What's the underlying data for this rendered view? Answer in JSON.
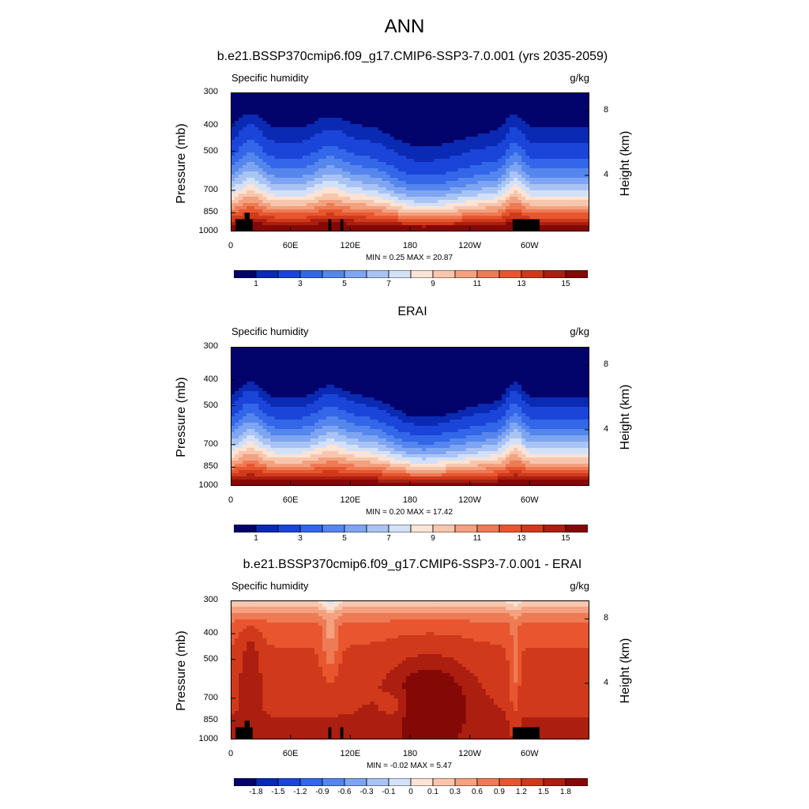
{
  "page_title": "ANN",
  "colors": {
    "sequential_scale": [
      "#02036b",
      "#0a2ab4",
      "#1a45d8",
      "#3366e8",
      "#5586ee",
      "#7ea5f1",
      "#a9c4f4",
      "#d3e1f8",
      "#fbe3d5",
      "#f8c6ad",
      "#f3a17f",
      "#ee7b55",
      "#e8562f",
      "#d03a1b",
      "#ac1e10",
      "#840806"
    ],
    "difference_scale": [
      "#02036b",
      "#0a2ab4",
      "#1a45d8",
      "#3366e8",
      "#5586ee",
      "#7ea5f1",
      "#a9c4f4",
      "#d3e1f8",
      "#fbe3d5",
      "#f8c6ad",
      "#f3a17f",
      "#ee7b55",
      "#e8562f",
      "#d03a1b",
      "#ac1e10",
      "#840806"
    ],
    "terrain_mask": "#000000"
  },
  "chart_data": [
    {
      "type": "heatmap",
      "title": "b.e21.BSSP370cmip6.f09_g17.CMIP6-SSP3-7.0.001 (yrs 2035-2059)",
      "variable": "Specific humidity",
      "units": "g/kg",
      "ylabel": "Pressure (mb)",
      "ylabel_right": "Height (km)",
      "x_ticks": [
        "0",
        "60E",
        "120E",
        "180",
        "120W",
        "60W"
      ],
      "x_tick_values": [
        0,
        60,
        120,
        180,
        240,
        300
      ],
      "xlim": [
        0,
        360
      ],
      "y_ticks": [
        "300",
        "400",
        "500",
        "700",
        "850",
        "1000"
      ],
      "y_tick_values": [
        300,
        400,
        500,
        700,
        850,
        1000
      ],
      "ylim": [
        1000,
        300
      ],
      "y_scale": "log",
      "height_ticks": [
        "8",
        "4"
      ],
      "height_tick_values": [
        8,
        4
      ],
      "min_label": "MIN =   0.25  MAX =  20.87",
      "min": 0.25,
      "max": 20.87,
      "colorbar_labels": [
        "1",
        "3",
        "5",
        "7",
        "9",
        "11",
        "13",
        "15"
      ],
      "colorbar_levels": [
        0.5,
        1,
        2,
        3,
        4,
        5,
        6,
        7,
        8,
        9,
        10,
        11,
        12,
        13,
        14,
        15
      ],
      "contour_levels_count": 16,
      "terrain_mask": true
    },
    {
      "type": "heatmap",
      "title": "ERAI",
      "variable": "Specific humidity",
      "units": "g/kg",
      "ylabel": "Pressure (mb)",
      "ylabel_right": "Height (km)",
      "x_ticks": [
        "0",
        "60E",
        "120E",
        "180",
        "120W",
        "60W"
      ],
      "x_tick_values": [
        0,
        60,
        120,
        180,
        240,
        300
      ],
      "xlim": [
        0,
        360
      ],
      "y_ticks": [
        "300",
        "400",
        "500",
        "700",
        "850",
        "1000"
      ],
      "y_tick_values": [
        300,
        400,
        500,
        700,
        850,
        1000
      ],
      "ylim": [
        1000,
        300
      ],
      "y_scale": "log",
      "height_ticks": [
        "8",
        "4"
      ],
      "height_tick_values": [
        8,
        4
      ],
      "min_label": "MIN =   0.20  MAX =  17.42",
      "min": 0.2,
      "max": 17.42,
      "colorbar_labels": [
        "1",
        "3",
        "5",
        "7",
        "9",
        "11",
        "13",
        "15"
      ],
      "colorbar_levels": [
        0.5,
        1,
        2,
        3,
        4,
        5,
        6,
        7,
        8,
        9,
        10,
        11,
        12,
        13,
        14,
        15
      ],
      "contour_levels_count": 16,
      "terrain_mask": false
    },
    {
      "type": "heatmap",
      "title": "b.e21.BSSP370cmip6.f09_g17.CMIP6-SSP3-7.0.001 - ERAI",
      "variable": "Specific humidity",
      "units": "g/kg",
      "ylabel": "Pressure (mb)",
      "ylabel_right": "Height (km)",
      "x_ticks": [
        "0",
        "60E",
        "120E",
        "180",
        "120W",
        "60W"
      ],
      "x_tick_values": [
        0,
        60,
        120,
        180,
        240,
        300
      ],
      "xlim": [
        0,
        360
      ],
      "y_ticks": [
        "300",
        "400",
        "500",
        "700",
        "850",
        "1000"
      ],
      "y_tick_values": [
        300,
        400,
        500,
        700,
        850,
        1000
      ],
      "ylim": [
        1000,
        300
      ],
      "y_scale": "log",
      "height_ticks": [
        "8",
        "4"
      ],
      "height_tick_values": [
        8,
        4
      ],
      "min_label": "MIN =  -0.02  MAX =   5.47",
      "min": -0.02,
      "max": 5.47,
      "colorbar_labels": [
        "-1.8",
        "-1.5",
        "-1.2",
        "-0.9",
        "-0.6",
        "-0.3",
        "-0.1",
        "0",
        "0.1",
        "0.3",
        "0.6",
        "0.9",
        "1.2",
        "1.5",
        "1.8"
      ],
      "colorbar_levels": [
        -1.8,
        -1.5,
        -1.2,
        -0.9,
        -0.6,
        -0.3,
        -0.1,
        0,
        0.1,
        0.3,
        0.6,
        0.9,
        1.2,
        1.5,
        1.8
      ],
      "contour_levels_count": 16,
      "terrain_mask": true
    }
  ]
}
